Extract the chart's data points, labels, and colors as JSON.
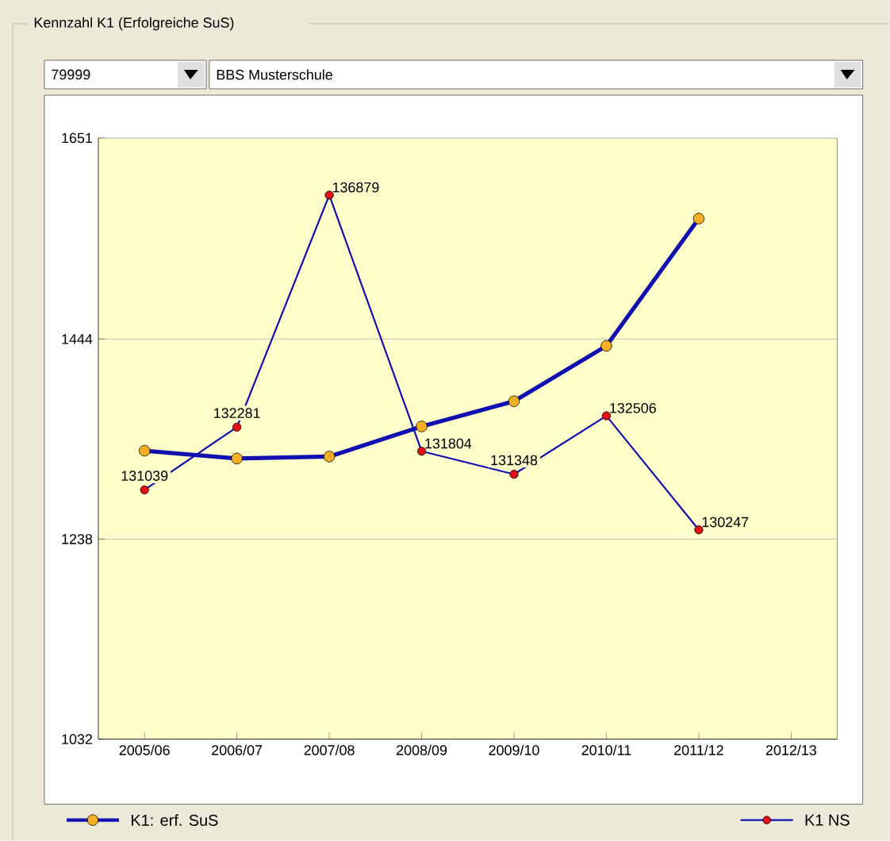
{
  "chart_data": {
    "type": "line",
    "title": "Kennzahl K1 (Erfolgreiche SuS)",
    "annotations": [
      "79999",
      "BBS Musterschule"
    ],
    "categories": [
      "2005/06",
      "2006/07",
      "2007/08",
      "2008/09",
      "2009/10",
      "2010/11",
      "2011/12",
      "2012/13"
    ],
    "series": [
      {
        "name": "K1: erf. SuS",
        "color": "#f5b025",
        "values": [
          1329,
          1321,
          1323,
          1354,
          1380,
          1437,
          1568,
          null
        ]
      },
      {
        "name": "K1 NS",
        "color": "#e0101a",
        "axis": "y2",
        "data_labels": true,
        "values": [
          131039,
          132281,
          136879,
          131804,
          131348,
          132506,
          130247,
          null
        ]
      }
    ],
    "ylim": [
      1032,
      1651
    ],
    "yticks": [
      1032,
      1238,
      1444,
      1651
    ],
    "y2lim": [
      126099,
      138010
    ],
    "grid": "y",
    "legend": "bottom",
    "marker": "circle"
  }
}
